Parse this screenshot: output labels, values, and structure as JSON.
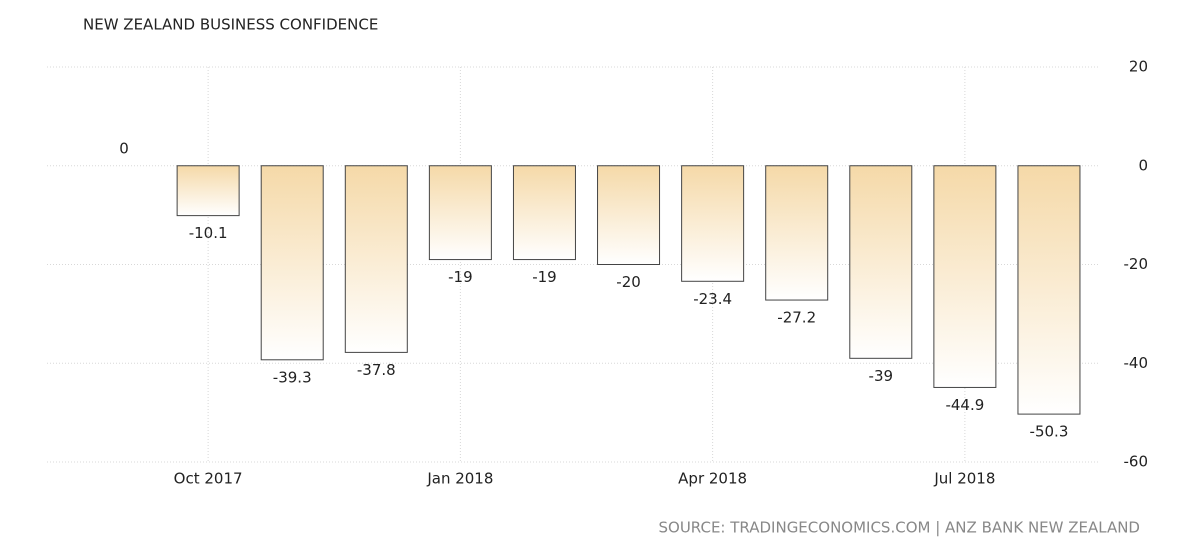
{
  "chart_data": {
    "type": "bar",
    "title": "NEW ZEALAND BUSINESS CONFIDENCE",
    "source": "SOURCE: TRADINGECONOMICS.COM | ANZ BANK NEW ZEALAND",
    "categories": [
      null,
      "Oct 2017",
      null,
      null,
      "Jan 2018",
      null,
      null,
      "Apr 2018",
      null,
      null,
      "Jul 2018",
      null
    ],
    "values": [
      0,
      -10.1,
      -39.3,
      -37.8,
      -19,
      -19,
      -20,
      -23.4,
      -27.2,
      -39,
      -44.9,
      -50.3
    ],
    "color": "#f5d9a8",
    "ylim": [
      -60,
      20
    ],
    "yticks": [
      -60,
      -40,
      -20,
      0,
      20
    ],
    "grid": true
  }
}
